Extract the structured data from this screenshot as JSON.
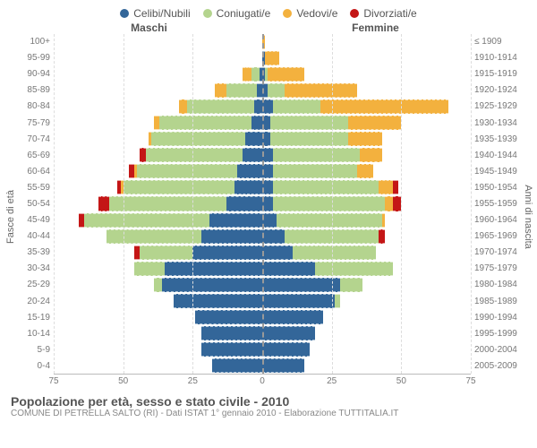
{
  "colors": {
    "single": "#336699",
    "married": "#b4d48e",
    "widowed": "#f3b13e",
    "divorced": "#c41616",
    "grid": "#dddddd",
    "center": "#999999",
    "text": "#666666"
  },
  "legend": [
    {
      "key": "single",
      "label": "Celibi/Nubili"
    },
    {
      "key": "married",
      "label": "Coniugati/e"
    },
    {
      "key": "widowed",
      "label": "Vedovi/e"
    },
    {
      "key": "divorced",
      "label": "Divorziati/e"
    }
  ],
  "headers": {
    "left": "Maschi",
    "right": "Femmine"
  },
  "axis_titles": {
    "left": "Fasce di età",
    "right": "Anni di nascita"
  },
  "x_axis": {
    "max": 75,
    "ticks": [
      75,
      50,
      25,
      0,
      25,
      50,
      75
    ]
  },
  "age_labels": [
    "100+",
    "95-99",
    "90-94",
    "85-89",
    "80-84",
    "75-79",
    "70-74",
    "65-69",
    "60-64",
    "55-59",
    "50-54",
    "45-49",
    "40-44",
    "35-39",
    "30-34",
    "25-29",
    "20-24",
    "15-19",
    "10-14",
    "5-9",
    "0-4"
  ],
  "year_labels": [
    "≤ 1909",
    "1910-1914",
    "1915-1919",
    "1920-1924",
    "1925-1929",
    "1930-1934",
    "1935-1939",
    "1940-1944",
    "1945-1949",
    "1950-1954",
    "1955-1959",
    "1960-1964",
    "1965-1969",
    "1970-1974",
    "1975-1979",
    "1980-1984",
    "1985-1989",
    "1990-1994",
    "1995-1999",
    "2000-2004",
    "2005-2009"
  ],
  "rows": [
    {
      "male": {
        "single": 0,
        "married": 0,
        "widowed": 0,
        "divorced": 0
      },
      "female": {
        "single": 0,
        "married": 0,
        "widowed": 1,
        "divorced": 0
      }
    },
    {
      "male": {
        "single": 0,
        "married": 0,
        "widowed": 0,
        "divorced": 0
      },
      "female": {
        "single": 1,
        "married": 0,
        "widowed": 5,
        "divorced": 0
      }
    },
    {
      "male": {
        "single": 1,
        "married": 3,
        "widowed": 3,
        "divorced": 0
      },
      "female": {
        "single": 1,
        "married": 1,
        "widowed": 13,
        "divorced": 0
      }
    },
    {
      "male": {
        "single": 2,
        "married": 11,
        "widowed": 4,
        "divorced": 0
      },
      "female": {
        "single": 2,
        "married": 6,
        "widowed": 26,
        "divorced": 0
      }
    },
    {
      "male": {
        "single": 3,
        "married": 24,
        "widowed": 3,
        "divorced": 0
      },
      "female": {
        "single": 4,
        "married": 17,
        "widowed": 46,
        "divorced": 0
      }
    },
    {
      "male": {
        "single": 4,
        "married": 33,
        "widowed": 2,
        "divorced": 0
      },
      "female": {
        "single": 3,
        "married": 28,
        "widowed": 19,
        "divorced": 0
      }
    },
    {
      "male": {
        "single": 6,
        "married": 34,
        "widowed": 1,
        "divorced": 0
      },
      "female": {
        "single": 3,
        "married": 28,
        "widowed": 12,
        "divorced": 0
      }
    },
    {
      "male": {
        "single": 7,
        "married": 35,
        "widowed": 0,
        "divorced": 2
      },
      "female": {
        "single": 4,
        "married": 31,
        "widowed": 8,
        "divorced": 0
      }
    },
    {
      "male": {
        "single": 9,
        "married": 36,
        "widowed": 1,
        "divorced": 2
      },
      "female": {
        "single": 4,
        "married": 30,
        "widowed": 6,
        "divorced": 0
      }
    },
    {
      "male": {
        "single": 10,
        "married": 40,
        "widowed": 1,
        "divorced": 1
      },
      "female": {
        "single": 4,
        "married": 38,
        "widowed": 5,
        "divorced": 2
      }
    },
    {
      "male": {
        "single": 13,
        "married": 42,
        "widowed": 0,
        "divorced": 4
      },
      "female": {
        "single": 4,
        "married": 40,
        "widowed": 3,
        "divorced": 3
      }
    },
    {
      "male": {
        "single": 19,
        "married": 45,
        "widowed": 0,
        "divorced": 2
      },
      "female": {
        "single": 5,
        "married": 38,
        "widowed": 1,
        "divorced": 0
      }
    },
    {
      "male": {
        "single": 22,
        "married": 34,
        "widowed": 0,
        "divorced": 0
      },
      "female": {
        "single": 8,
        "married": 34,
        "widowed": 0,
        "divorced": 2
      }
    },
    {
      "male": {
        "single": 25,
        "married": 19,
        "widowed": 0,
        "divorced": 2
      },
      "female": {
        "single": 11,
        "married": 30,
        "widowed": 0,
        "divorced": 0
      }
    },
    {
      "male": {
        "single": 35,
        "married": 11,
        "widowed": 0,
        "divorced": 0
      },
      "female": {
        "single": 19,
        "married": 28,
        "widowed": 0,
        "divorced": 0
      }
    },
    {
      "male": {
        "single": 36,
        "married": 3,
        "widowed": 0,
        "divorced": 0
      },
      "female": {
        "single": 28,
        "married": 8,
        "widowed": 0,
        "divorced": 0
      }
    },
    {
      "male": {
        "single": 32,
        "married": 0,
        "widowed": 0,
        "divorced": 0
      },
      "female": {
        "single": 26,
        "married": 2,
        "widowed": 0,
        "divorced": 0
      }
    },
    {
      "male": {
        "single": 24,
        "married": 0,
        "widowed": 0,
        "divorced": 0
      },
      "female": {
        "single": 22,
        "married": 0,
        "widowed": 0,
        "divorced": 0
      }
    },
    {
      "male": {
        "single": 22,
        "married": 0,
        "widowed": 0,
        "divorced": 0
      },
      "female": {
        "single": 19,
        "married": 0,
        "widowed": 0,
        "divorced": 0
      }
    },
    {
      "male": {
        "single": 22,
        "married": 0,
        "widowed": 0,
        "divorced": 0
      },
      "female": {
        "single": 17,
        "married": 0,
        "widowed": 0,
        "divorced": 0
      }
    },
    {
      "male": {
        "single": 18,
        "married": 0,
        "widowed": 0,
        "divorced": 0
      },
      "female": {
        "single": 15,
        "married": 0,
        "widowed": 0,
        "divorced": 0
      }
    }
  ],
  "footer": {
    "title": "Popolazione per età, sesso e stato civile - 2010",
    "subtitle": "COMUNE DI PETRELLA SALTO (RI) - Dati ISTAT 1° gennaio 2010 - Elaborazione TUTTITALIA.IT"
  }
}
